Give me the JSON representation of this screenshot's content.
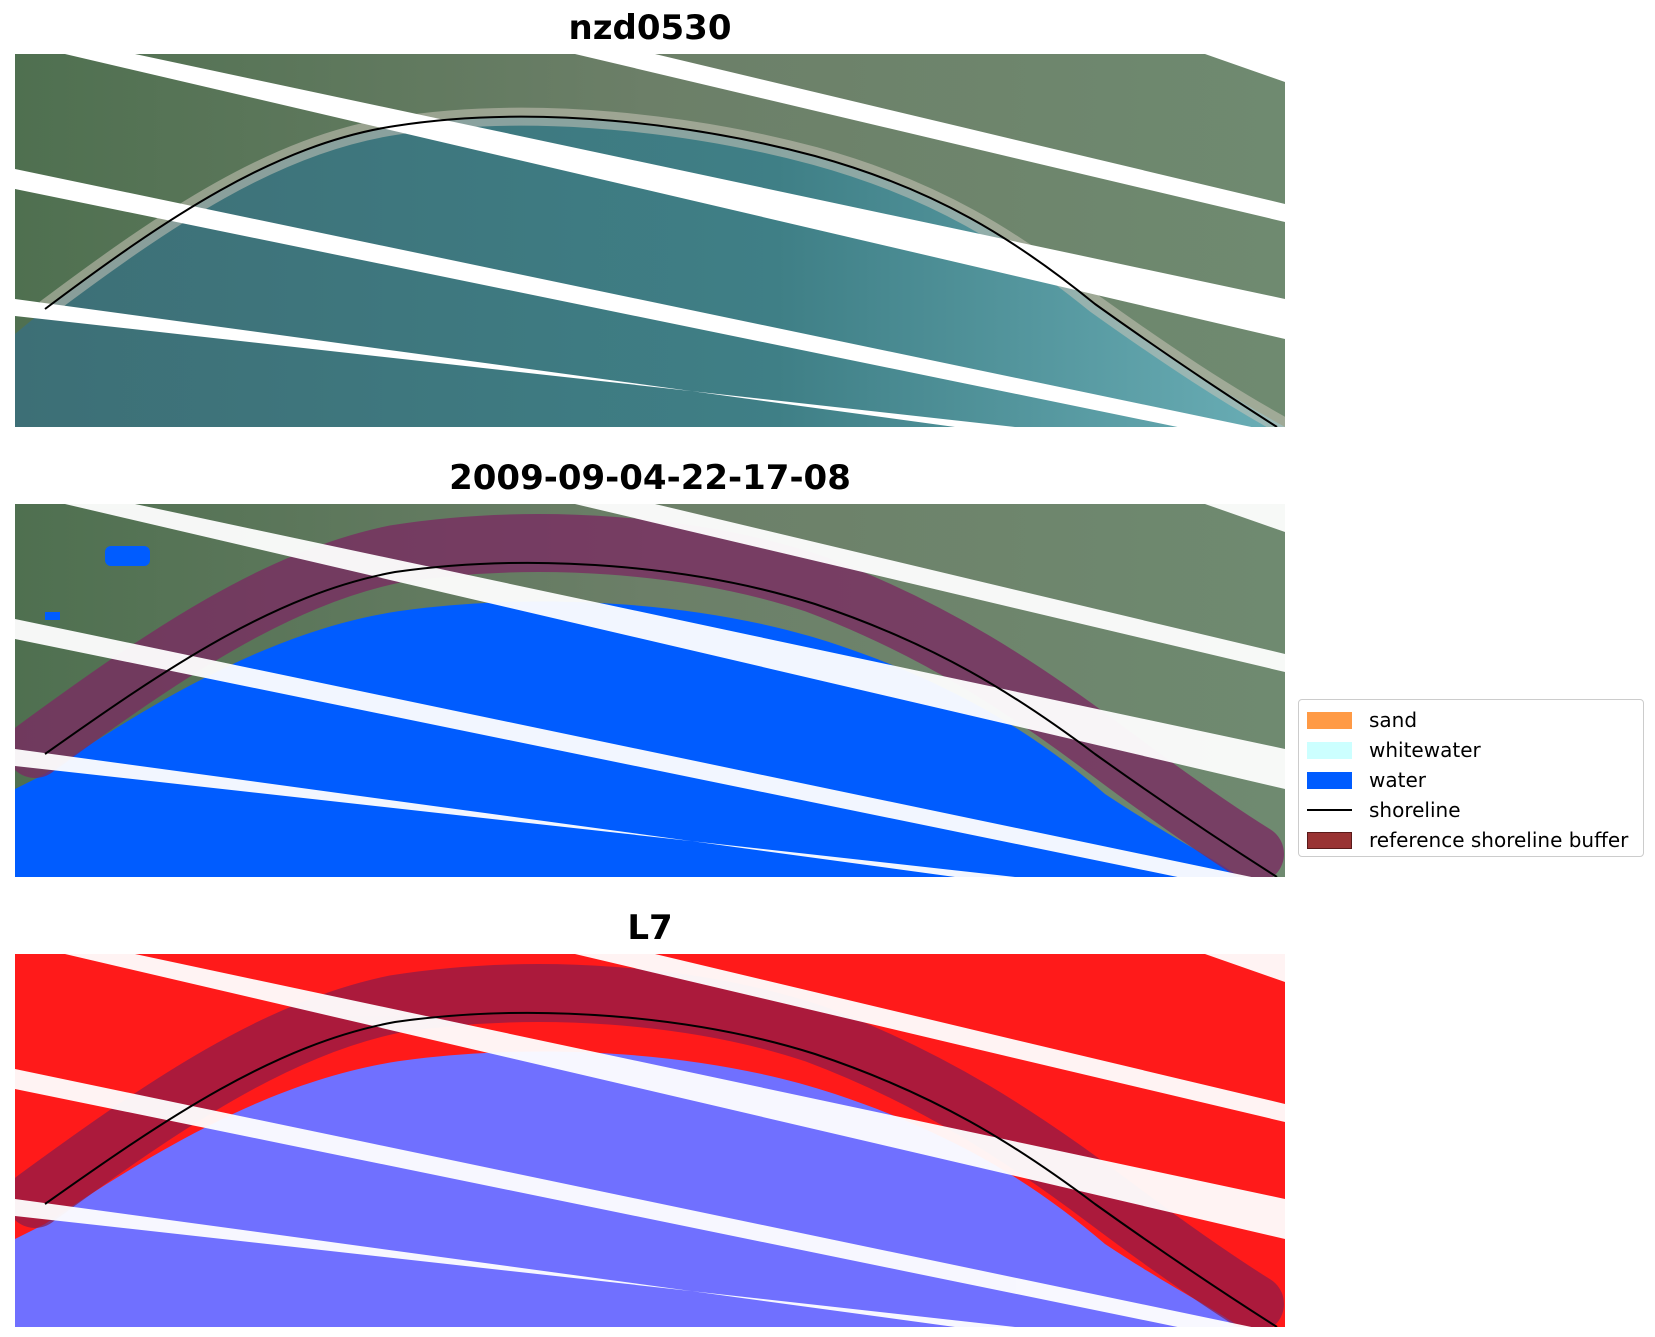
{
  "panels": [
    {
      "title": "nzd0530"
    },
    {
      "title": "2009-09-04-22-17-08"
    },
    {
      "title": "L7"
    }
  ],
  "legend": {
    "items": [
      {
        "label": "sand",
        "color": "#ff9a45",
        "kind": "patch"
      },
      {
        "label": "whitewater",
        "color": "#ccffff",
        "kind": "patch"
      },
      {
        "label": "water",
        "color": "#005cff",
        "kind": "patch"
      },
      {
        "label": "shoreline",
        "color": "#000000",
        "kind": "line"
      },
      {
        "label": "reference shoreline buffer",
        "color": "#993333",
        "kind": "patch"
      }
    ]
  },
  "colors": {
    "land": "#5f7a5e",
    "sea": "#3f7f86",
    "water_class": "#005cff",
    "buffer": "#8a2a5a",
    "nir_land": "#ff1a1a",
    "nir_water": "#7070ff",
    "gap_stripe": "#ffffff",
    "shoreline": "#000000"
  }
}
